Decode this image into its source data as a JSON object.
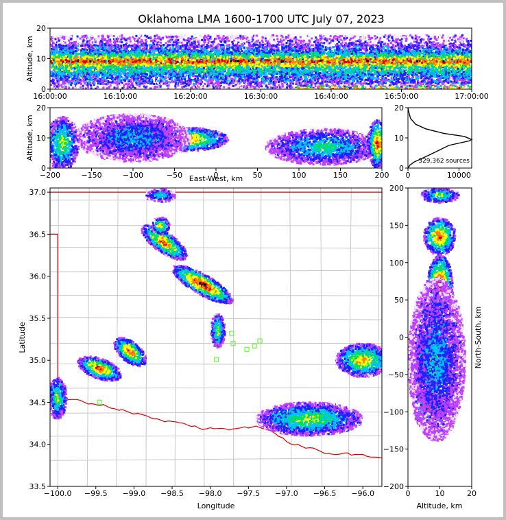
{
  "chart_data": [
    {
      "id": "time_height",
      "type": "heatmap",
      "title": "Oklahoma LMA 1600-1700 UTC July 07, 2023",
      "ylabel": "Altitude, km",
      "xlabel": "",
      "xlim": [
        "16:00:00",
        "17:00:00"
      ],
      "ylim": [
        0,
        20
      ],
      "xticks": [
        "16:00:00",
        "16:10:00",
        "16:20:00",
        "16:30:00",
        "16:40:00",
        "16:50:00",
        "17:00:00"
      ],
      "yticks": [
        "0",
        "10",
        "20"
      ],
      "bands": [
        {
          "x0": 0,
          "x1": 60,
          "y0": 0.5,
          "y1": 18,
          "level": 2
        },
        {
          "x0": 0,
          "x1": 60,
          "y0": 2,
          "y1": 15,
          "level": 4
        },
        {
          "x0": 0,
          "x1": 60,
          "y0": 5,
          "y1": 13,
          "level": 6
        },
        {
          "x0": 0,
          "x1": 60,
          "y0": 7,
          "y1": 12,
          "level": 7
        },
        {
          "x0": 35,
          "x1": 60,
          "y0": 0,
          "y1": 1.5,
          "level": 6
        }
      ]
    },
    {
      "id": "ew_alt",
      "type": "heatmap",
      "xlabel": "East-West, km",
      "ylabel": "Altitude, km",
      "xlim": [
        -200,
        200
      ],
      "ylim": [
        0,
        20
      ],
      "xticks": [
        "−200",
        "−150",
        "−100",
        "−50",
        "0",
        "50",
        "100",
        "150",
        "200"
      ],
      "yticks": [
        "0",
        "10",
        "20"
      ],
      "blobs": [
        {
          "x": -95,
          "y": 10,
          "rx": 40,
          "ry": 4.5,
          "level": 7
        },
        {
          "x": -40,
          "y": 9.5,
          "rx": 55,
          "ry": 4,
          "level": 7
        },
        {
          "x": -100,
          "y": 10,
          "rx": 70,
          "ry": 8,
          "level": 3
        },
        {
          "x": -185,
          "y": 8,
          "rx": 20,
          "ry": 9,
          "level": 5
        },
        {
          "x": 130,
          "y": 7,
          "rx": 70,
          "ry": 6,
          "level": 4
        },
        {
          "x": 195,
          "y": 8,
          "rx": 12,
          "ry": 8,
          "level": 7
        }
      ]
    },
    {
      "id": "alt_hist",
      "type": "line",
      "xlim": [
        0,
        12500
      ],
      "ylim": [
        0,
        20
      ],
      "xticks": [
        "0",
        "10000"
      ],
      "yticks": [
        "0",
        "10",
        "20"
      ],
      "annotation": "329,362 sources",
      "x": [
        0,
        400,
        1200,
        2500,
        5000,
        8000,
        12000,
        12500,
        11000,
        7000,
        3500,
        1500,
        500,
        100,
        0
      ],
      "y": [
        0,
        1,
        2,
        3,
        5,
        7.5,
        9,
        9.5,
        10.5,
        11.5,
        13,
        14.5,
        16.5,
        19,
        20
      ]
    },
    {
      "id": "plan_view",
      "type": "heatmap",
      "xlabel": "Longitude",
      "ylabel": "Latitude",
      "xlim": [
        -100.1,
        -95.75
      ],
      "ylim": [
        33.5,
        37.05
      ],
      "xticks": [
        "−100.0",
        "−99.5",
        "−99.0",
        "−98.5",
        "−98.0",
        "−97.5",
        "−97.0",
        "−96.5",
        "−96.0"
      ],
      "yticks": [
        "33.5",
        "34.0",
        "34.5",
        "35.0",
        "35.5",
        "36.0",
        "36.5",
        "37.0"
      ],
      "stations": [
        {
          "lon": -99.45,
          "lat": 34.5
        },
        {
          "lon": -97.92,
          "lat": 35.01
        },
        {
          "lon": -97.7,
          "lat": 35.2
        },
        {
          "lon": -97.52,
          "lat": 35.13
        },
        {
          "lon": -97.42,
          "lat": 35.17
        },
        {
          "lon": -97.35,
          "lat": 35.23
        },
        {
          "lon": -97.72,
          "lat": 35.32
        }
      ],
      "blobs": [
        {
          "lon": -98.6,
          "lat": 36.4,
          "rx": 0.35,
          "ry": 0.12,
          "rot": 35,
          "level": 7
        },
        {
          "lon": -98.1,
          "lat": 35.9,
          "rx": 0.45,
          "ry": 0.12,
          "rot": 30,
          "level": 8
        },
        {
          "lon": -98.65,
          "lat": 36.96,
          "rx": 0.2,
          "ry": 0.08,
          "rot": 0,
          "level": 4
        },
        {
          "lon": -98.65,
          "lat": 36.6,
          "rx": 0.12,
          "ry": 0.1,
          "rot": 0,
          "level": 6
        },
        {
          "lon": -99.05,
          "lat": 35.1,
          "rx": 0.25,
          "ry": 0.12,
          "rot": 40,
          "level": 7
        },
        {
          "lon": -99.45,
          "lat": 34.9,
          "rx": 0.3,
          "ry": 0.12,
          "rot": 20,
          "level": 7
        },
        {
          "lon": -100.0,
          "lat": 34.55,
          "rx": 0.12,
          "ry": 0.25,
          "rot": 0,
          "level": 5
        },
        {
          "lon": -96.7,
          "lat": 34.3,
          "rx": 0.7,
          "ry": 0.2,
          "rot": 0,
          "level": 5
        },
        {
          "lon": -96.0,
          "lat": 35.0,
          "rx": 0.35,
          "ry": 0.2,
          "rot": 0,
          "level": 6
        },
        {
          "lon": -97.9,
          "lat": 35.35,
          "rx": 0.1,
          "ry": 0.2,
          "rot": 0,
          "level": 5
        }
      ]
    },
    {
      "id": "ns_alt",
      "type": "heatmap",
      "xlabel": "Altitude, km",
      "ylabel": "North-South, km",
      "xlim": [
        0,
        20
      ],
      "ylim": [
        -200,
        200
      ],
      "xticks": [
        "0",
        "10",
        "20"
      ],
      "yticks": [
        "−200",
        "−150",
        "−100",
        "−50",
        "0",
        "50",
        "100",
        "150",
        "200"
      ],
      "blobs": [
        {
          "x": 10,
          "y": 70,
          "rx": 4,
          "ry": 40,
          "level": 8
        },
        {
          "x": 10,
          "y": 135,
          "rx": 5,
          "ry": 25,
          "level": 7
        },
        {
          "x": 10,
          "y": 190,
          "rx": 6,
          "ry": 10,
          "level": 5
        },
        {
          "x": 8,
          "y": -30,
          "rx": 6,
          "ry": 35,
          "level": 7
        },
        {
          "x": 7,
          "y": -100,
          "rx": 5,
          "ry": 25,
          "level": 7
        },
        {
          "x": 9,
          "y": -30,
          "rx": 9,
          "ry": 110,
          "level": 3
        }
      ]
    }
  ],
  "colors": {
    "palette": [
      "#f0e0ff",
      "#c040ff",
      "#2020ff",
      "#00c0ff",
      "#00e060",
      "#ffff00",
      "#ff8000",
      "#e00000",
      "#000000",
      "#ffffff"
    ],
    "state_border": "#e00000",
    "county_lines": "#c8c8c8",
    "station_marker": "#66ff33",
    "background": "#c0c0c0"
  }
}
